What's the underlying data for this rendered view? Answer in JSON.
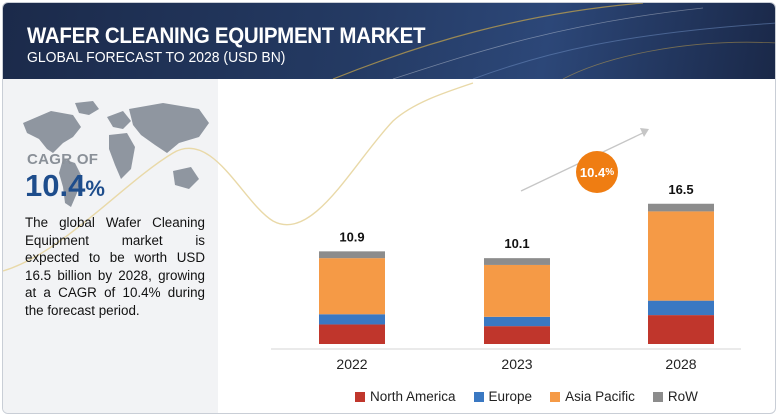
{
  "header": {
    "title": "WAFER CLEANING EQUIPMENT MARKET",
    "subtitle": "GLOBAL FORECAST TO 2028 (USD BN)"
  },
  "sidebar": {
    "cagr_label": "CAGR OF",
    "cagr_value": "10.4",
    "cagr_unit": "%",
    "description": "The global Wafer Cleaning Equipment market is expected to be worth USD 16.5 billion by 2028, growing at a CAGR of 10.4% during the forecast period."
  },
  "callout": {
    "value": "10.4",
    "unit": "%"
  },
  "colors": {
    "north_america": "#c0362c",
    "europe": "#3a78c2",
    "asia_pacific": "#f59a46",
    "row": "#8c8c8c",
    "accent": "#ef7d12",
    "header_bg": "#1f3054"
  },
  "chart_data": {
    "type": "bar",
    "stacked": true,
    "categories": [
      "2022",
      "2023",
      "2028"
    ],
    "totals": [
      10.9,
      10.1,
      16.5
    ],
    "series": [
      {
        "name": "North America",
        "values": [
          2.3,
          2.1,
          3.4
        ]
      },
      {
        "name": "Europe",
        "values": [
          1.2,
          1.1,
          1.7
        ]
      },
      {
        "name": "Asia Pacific",
        "values": [
          6.6,
          6.1,
          10.5
        ]
      },
      {
        "name": "RoW",
        "values": [
          0.8,
          0.8,
          0.9
        ]
      }
    ],
    "unit": "USD BN",
    "legend_position": "bottom",
    "grid": false
  }
}
